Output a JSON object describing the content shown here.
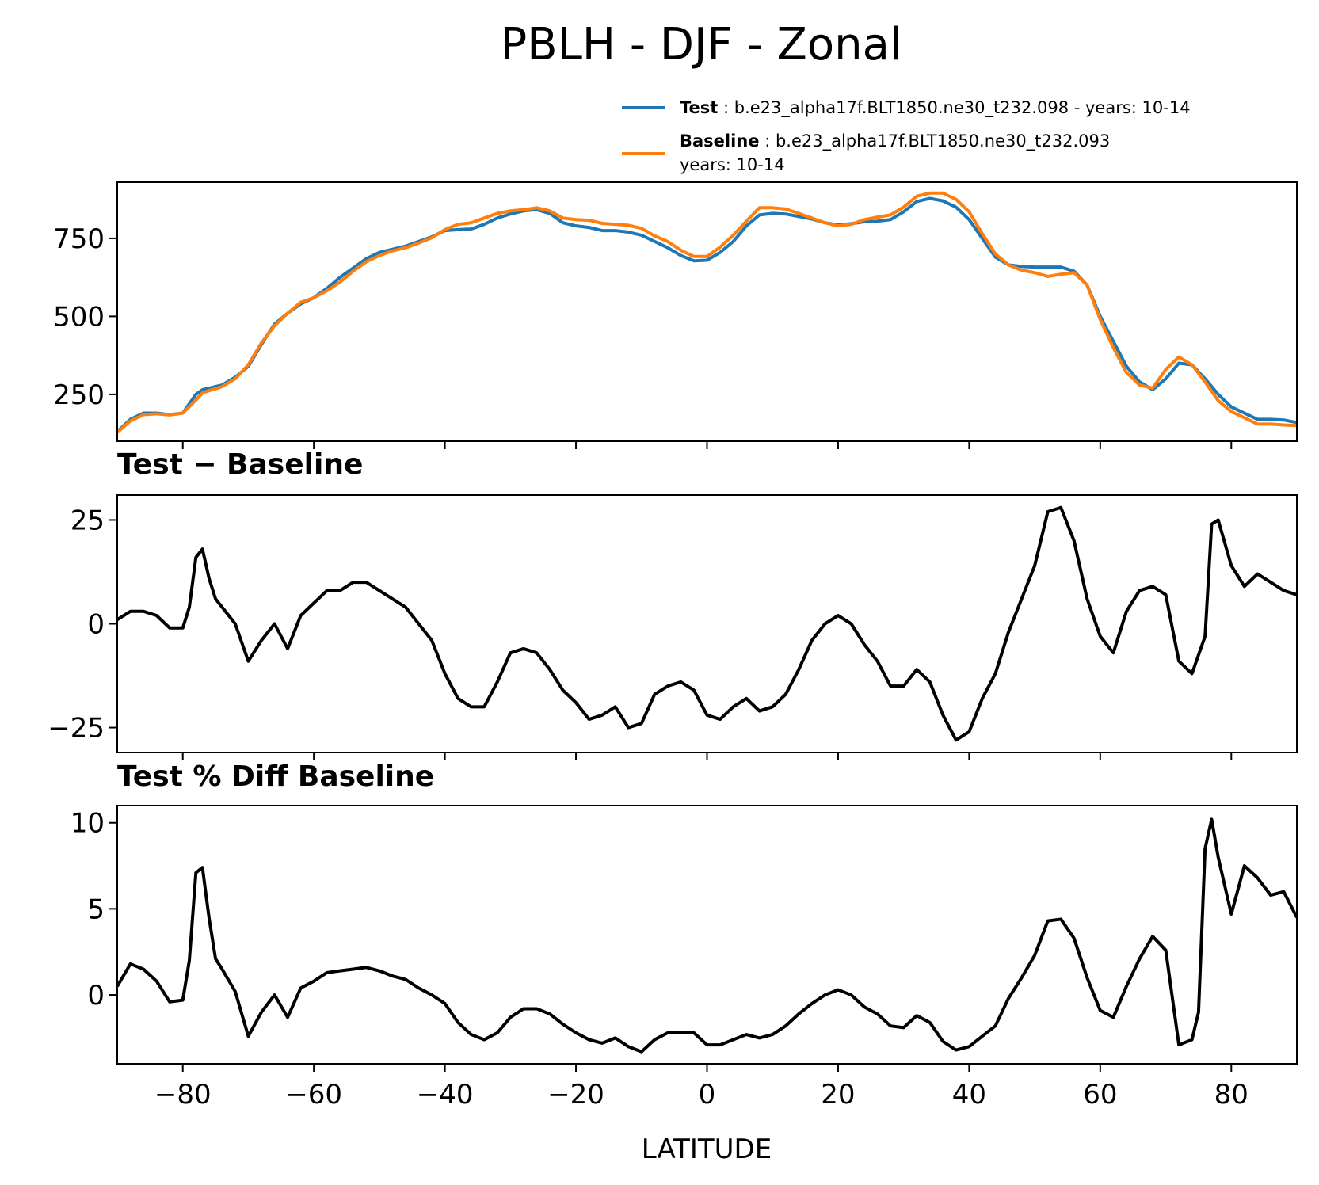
{
  "figure": {
    "title": "PBLH - DJF - Zonal",
    "xlabel": "LATITUDE",
    "xlim": [
      -90,
      90
    ],
    "xticks": [
      -80,
      -60,
      -40,
      -20,
      0,
      20,
      40,
      60,
      80
    ],
    "xtick_labels": [
      "−80",
      "−60",
      "−40",
      "−20",
      "0",
      "20",
      "40",
      "60",
      "80"
    ]
  },
  "legend": {
    "test": {
      "bold": "Test",
      "text": " : b.e23_alpha17f.BLT1850.ne30_t232.098 - years: 10-14",
      "color": "#1f77b4"
    },
    "baseline": {
      "bold": "Baseline",
      "text": " : b.e23_alpha17f.BLT1850.ne30_t232.093",
      "text2": "years: 10-14",
      "color": "#ff7f0e"
    }
  },
  "chart_data": [
    {
      "type": "line",
      "title": "",
      "ylim": [
        100,
        930
      ],
      "yticks": [
        250,
        500,
        750
      ],
      "ytick_labels": [
        "250",
        "500",
        "750"
      ],
      "x": [
        -90,
        -88,
        -86,
        -84,
        -82,
        -80,
        -78,
        -77,
        -76,
        -74,
        -72,
        -70,
        -68,
        -66,
        -64,
        -62,
        -60,
        -58,
        -56,
        -54,
        -52,
        -50,
        -48,
        -46,
        -44,
        -42,
        -40,
        -38,
        -36,
        -34,
        -32,
        -30,
        -28,
        -26,
        -24,
        -22,
        -20,
        -18,
        -16,
        -14,
        -12,
        -10,
        -8,
        -6,
        -4,
        -2,
        0,
        2,
        4,
        6,
        8,
        10,
        12,
        14,
        16,
        18,
        20,
        22,
        24,
        26,
        28,
        30,
        32,
        34,
        36,
        38,
        40,
        42,
        44,
        46,
        48,
        50,
        52,
        54,
        56,
        58,
        60,
        62,
        64,
        66,
        68,
        70,
        72,
        74,
        76,
        78,
        80,
        82,
        84,
        86,
        88,
        90
      ],
      "series": [
        {
          "name": "Test",
          "color": "#1f77b4",
          "values": [
            130,
            170,
            190,
            190,
            185,
            190,
            250,
            265,
            270,
            280,
            305,
            340,
            410,
            475,
            510,
            540,
            560,
            590,
            625,
            655,
            685,
            705,
            715,
            725,
            740,
            755,
            775,
            778,
            780,
            795,
            815,
            828,
            838,
            842,
            830,
            800,
            790,
            785,
            775,
            775,
            770,
            760,
            740,
            720,
            695,
            678,
            680,
            705,
            740,
            790,
            825,
            830,
            828,
            820,
            812,
            800,
            793,
            797,
            803,
            805,
            810,
            835,
            868,
            878,
            870,
            850,
            810,
            750,
            690,
            665,
            660,
            658,
            658,
            658,
            645,
            600,
            500,
            420,
            340,
            290,
            265,
            300,
            350,
            345,
            300,
            250,
            210,
            190,
            170,
            170,
            168,
            160
          ]
        },
        {
          "name": "Baseline",
          "color": "#ff7f0e",
          "values": [
            128,
            165,
            185,
            188,
            184,
            190,
            232,
            255,
            262,
            275,
            300,
            345,
            415,
            470,
            510,
            545,
            560,
            582,
            610,
            645,
            675,
            695,
            710,
            720,
            735,
            752,
            778,
            795,
            800,
            815,
            830,
            838,
            842,
            848,
            838,
            815,
            810,
            808,
            798,
            795,
            792,
            782,
            758,
            740,
            712,
            692,
            692,
            722,
            760,
            805,
            848,
            848,
            844,
            830,
            815,
            800,
            790,
            795,
            810,
            818,
            825,
            850,
            885,
            895,
            895,
            875,
            835,
            765,
            700,
            665,
            648,
            640,
            628,
            635,
            640,
            600,
            490,
            400,
            320,
            280,
            270,
            330,
            370,
            345,
            290,
            230,
            195,
            175,
            155,
            155,
            152,
            150
          ]
        }
      ]
    },
    {
      "type": "line",
      "title": "Test − Baseline",
      "ylim": [
        -31,
        31
      ],
      "yticks": [
        -25,
        0,
        25
      ],
      "ytick_labels": [
        "−25",
        "0",
        "25"
      ],
      "x": [
        -90,
        -88,
        -86,
        -84,
        -82,
        -80,
        -79,
        -78,
        -77,
        -76,
        -75,
        -74,
        -72,
        -70,
        -68,
        -66,
        -64,
        -62,
        -60,
        -58,
        -56,
        -54,
        -52,
        -50,
        -48,
        -46,
        -44,
        -42,
        -40,
        -38,
        -36,
        -34,
        -32,
        -30,
        -28,
        -26,
        -24,
        -22,
        -20,
        -18,
        -16,
        -14,
        -12,
        -10,
        -8,
        -6,
        -4,
        -2,
        0,
        2,
        4,
        6,
        8,
        10,
        12,
        14,
        16,
        18,
        20,
        22,
        24,
        26,
        28,
        30,
        32,
        34,
        36,
        38,
        40,
        42,
        44,
        46,
        48,
        50,
        52,
        54,
        56,
        58,
        60,
        62,
        64,
        66,
        68,
        70,
        72,
        74,
        76,
        77,
        78,
        80,
        82,
        84,
        86,
        88,
        90
      ],
      "series": [
        {
          "name": "Test − Baseline",
          "color": "#000000",
          "values": [
            1,
            3,
            3,
            2,
            -1,
            -1,
            4,
            16,
            18,
            11,
            6,
            4,
            0,
            -9,
            -4,
            0,
            -6,
            2,
            5,
            8,
            8,
            10,
            10,
            8,
            6,
            4,
            0,
            -4,
            -12,
            -18,
            -20,
            -20,
            -14,
            -7,
            -6,
            -7,
            -11,
            -16,
            -19,
            -23,
            -22,
            -20,
            -25,
            -24,
            -17,
            -15,
            -14,
            -16,
            -22,
            -23,
            -20,
            -18,
            -21,
            -20,
            -17,
            -11,
            -4,
            0,
            2,
            0,
            -5,
            -9,
            -15,
            -15,
            -11,
            -14,
            -22,
            -28,
            -26,
            -18,
            -12,
            -2,
            6,
            14,
            27,
            28,
            20,
            6,
            -3,
            -7,
            3,
            8,
            9,
            7,
            -9,
            -12,
            -3,
            24,
            25,
            14,
            9,
            12,
            10,
            8,
            7
          ]
        }
      ]
    },
    {
      "type": "line",
      "title": "Test % Diff Baseline",
      "ylim": [
        -4,
        11
      ],
      "yticks": [
        0,
        5,
        10
      ],
      "ytick_labels": [
        "0",
        "5",
        "10"
      ],
      "x": [
        -90,
        -88,
        -86,
        -84,
        -82,
        -80,
        -79,
        -78,
        -77,
        -76,
        -75,
        -74,
        -72,
        -70,
        -68,
        -66,
        -64,
        -62,
        -60,
        -58,
        -56,
        -54,
        -52,
        -50,
        -48,
        -46,
        -44,
        -42,
        -40,
        -38,
        -36,
        -34,
        -32,
        -30,
        -28,
        -26,
        -24,
        -22,
        -20,
        -18,
        -16,
        -14,
        -12,
        -10,
        -8,
        -6,
        -4,
        -2,
        0,
        2,
        4,
        6,
        8,
        10,
        12,
        14,
        16,
        18,
        20,
        22,
        24,
        26,
        28,
        30,
        32,
        34,
        36,
        38,
        40,
        42,
        44,
        46,
        48,
        50,
        52,
        54,
        56,
        58,
        60,
        62,
        64,
        66,
        68,
        70,
        72,
        74,
        75,
        76,
        77,
        78,
        80,
        82,
        84,
        86,
        88,
        90
      ],
      "series": [
        {
          "name": "Test % Diff Baseline",
          "color": "#000000",
          "values": [
            0.5,
            1.8,
            1.5,
            0.8,
            -0.4,
            -0.3,
            2.0,
            7.1,
            7.4,
            4.5,
            2.1,
            1.5,
            0.2,
            -2.4,
            -1.0,
            0.0,
            -1.3,
            0.4,
            0.8,
            1.3,
            1.4,
            1.5,
            1.6,
            1.4,
            1.1,
            0.9,
            0.4,
            0.0,
            -0.5,
            -1.6,
            -2.3,
            -2.6,
            -2.2,
            -1.3,
            -0.8,
            -0.8,
            -1.1,
            -1.7,
            -2.2,
            -2.6,
            -2.8,
            -2.5,
            -3.0,
            -3.3,
            -2.6,
            -2.2,
            -2.2,
            -2.2,
            -2.9,
            -2.9,
            -2.6,
            -2.3,
            -2.5,
            -2.3,
            -1.8,
            -1.1,
            -0.5,
            0.0,
            0.3,
            0.0,
            -0.7,
            -1.1,
            -1.8,
            -1.9,
            -1.2,
            -1.6,
            -2.7,
            -3.2,
            -3.0,
            -2.4,
            -1.8,
            -0.2,
            1.0,
            2.3,
            4.3,
            4.4,
            3.3,
            1.0,
            -0.9,
            -1.3,
            0.5,
            2.1,
            3.4,
            2.6,
            -2.9,
            -2.6,
            -1.0,
            8.5,
            10.2,
            8.0,
            4.7,
            7.5,
            6.8,
            5.8,
            6.0,
            4.5
          ]
        }
      ]
    }
  ]
}
